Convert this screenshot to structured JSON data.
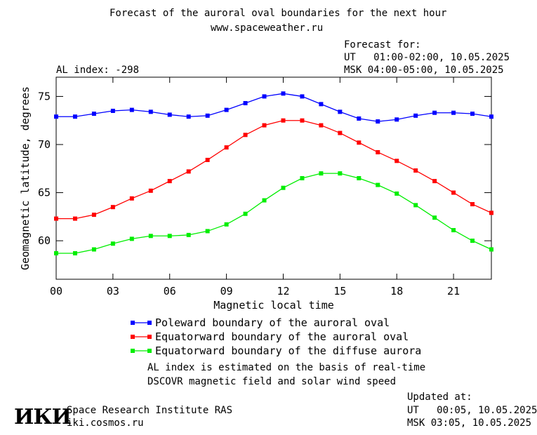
{
  "header": {
    "title": "Forecast of the auroral oval boundaries for the next hour",
    "site": "www.spaceweather.ru",
    "forecast_for": "Forecast for:",
    "ut_line": "UT   01:00-02:00, 10.05.2025",
    "msk_line": "MSK 04:00-05:00, 10.05.2025",
    "al_index": "AL index: -298"
  },
  "chart_data": {
    "type": "line",
    "xlabel": "Magnetic local time",
    "ylabel": "Geomagnetic latitude, degrees",
    "xlim": [
      0,
      23
    ],
    "ylim": [
      56,
      77
    ],
    "x_ticks": [
      0,
      3,
      6,
      9,
      12,
      15,
      18,
      21
    ],
    "x_tick_labels": [
      "00",
      "03",
      "06",
      "09",
      "12",
      "15",
      "18",
      "21"
    ],
    "y_ticks": [
      60,
      65,
      70,
      75
    ],
    "y_tick_labels": [
      "60",
      "65",
      "70",
      "75"
    ],
    "x": [
      0,
      1,
      2,
      3,
      4,
      5,
      6,
      7,
      8,
      9,
      10,
      11,
      12,
      13,
      14,
      15,
      16,
      17,
      18,
      19,
      20,
      21,
      22,
      23
    ],
    "series": [
      {
        "name": "Poleward boundary of the auroral oval",
        "color": "#0000ff",
        "values": [
          72.9,
          72.9,
          73.2,
          73.5,
          73.6,
          73.4,
          73.1,
          72.9,
          73.0,
          73.6,
          74.3,
          75.0,
          75.3,
          75.0,
          74.2,
          73.4,
          72.7,
          72.4,
          72.6,
          73.0,
          73.3,
          73.3,
          73.2,
          72.9
        ]
      },
      {
        "name": "Equatorward boundary of the auroral oval",
        "color": "#ff0000",
        "values": [
          62.3,
          62.3,
          62.7,
          63.5,
          64.4,
          65.2,
          66.2,
          67.2,
          68.4,
          69.7,
          71.0,
          72.0,
          72.5,
          72.5,
          72.0,
          71.2,
          70.2,
          69.2,
          68.3,
          67.3,
          66.2,
          65.0,
          63.8,
          62.9
        ]
      },
      {
        "name": "Equatorward boundary of the diffuse aurora",
        "color": "#00ee00",
        "values": [
          58.7,
          58.7,
          59.1,
          59.7,
          60.2,
          60.5,
          60.5,
          60.6,
          61.0,
          61.7,
          62.8,
          64.2,
          65.5,
          66.5,
          67.0,
          67.0,
          66.5,
          65.8,
          64.9,
          63.7,
          62.4,
          61.1,
          60.0,
          59.1
        ]
      }
    ]
  },
  "notes": {
    "line1": "AL index is estimated on the basis of real-time",
    "line2": "DSCOVR magnetic field and solar wind speed"
  },
  "footer": {
    "logo_text": "ИКИ",
    "institute": "Space Research Institute RAS",
    "site": "iki.cosmos.ru",
    "updated_at": "Updated at:",
    "ut_line": "UT   00:05, 10.05.2025",
    "msk_line": "MSK 03:05, 10.05.2025"
  }
}
